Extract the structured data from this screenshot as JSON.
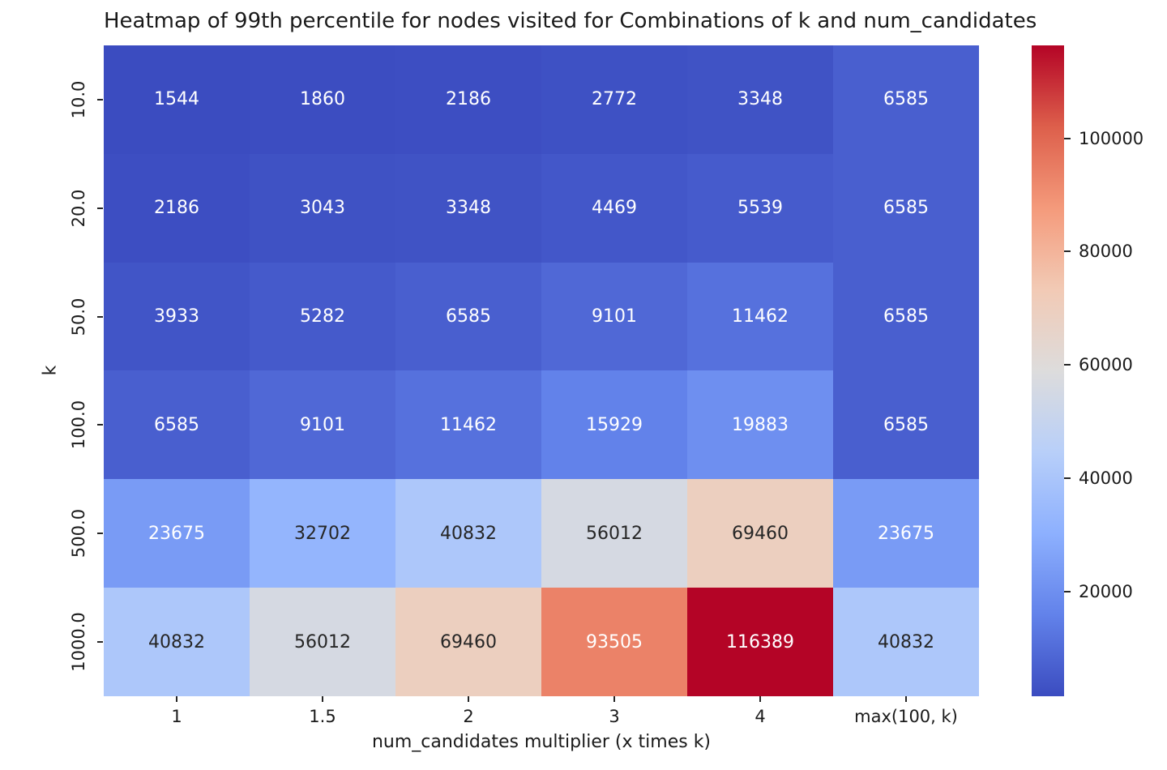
{
  "chart_data": {
    "type": "heatmap",
    "title": "Heatmap of 99th percentile for nodes visited for Combinations of k and num_candidates",
    "xlabel": "num_candidates multiplier (x times k)",
    "ylabel": "k",
    "x_tick_labels": [
      "1",
      "1.5",
      "2",
      "3",
      "4",
      "max(100, k)"
    ],
    "y_tick_labels": [
      "10.0",
      "20.0",
      "50.0",
      "100.0",
      "500.0",
      "1000.0"
    ],
    "values": [
      [
        1544,
        1860,
        2186,
        2772,
        3348,
        6585
      ],
      [
        2186,
        3043,
        3348,
        4469,
        5539,
        6585
      ],
      [
        3933,
        5282,
        6585,
        9101,
        11462,
        6585
      ],
      [
        6585,
        9101,
        11462,
        15929,
        19883,
        6585
      ],
      [
        23675,
        32702,
        40832,
        56012,
        69460,
        23675
      ],
      [
        40832,
        56012,
        69460,
        93505,
        116389,
        40832
      ]
    ],
    "vmin": 1544,
    "vmax": 116389,
    "colorbar_ticks": [
      20000,
      40000,
      60000,
      80000,
      100000
    ],
    "colormap": {
      "name": "coolwarm",
      "stops": [
        {
          "t": 0.0,
          "color": "#3b4cc0"
        },
        {
          "t": 0.125,
          "color": "#6282ea"
        },
        {
          "t": 0.25,
          "color": "#8db0fe"
        },
        {
          "t": 0.375,
          "color": "#b8cff9"
        },
        {
          "t": 0.5,
          "color": "#dddcdc"
        },
        {
          "t": 0.625,
          "color": "#f2cab5"
        },
        {
          "t": 0.75,
          "color": "#f49a7b"
        },
        {
          "t": 0.875,
          "color": "#dd5f4b"
        },
        {
          "t": 1.0,
          "color": "#b40426"
        }
      ]
    },
    "annotation_colors": {
      "on_dark": "#ffffff",
      "on_light": "#262626"
    },
    "axes": {
      "grid": false,
      "legend_position": "right-colorbar"
    }
  }
}
